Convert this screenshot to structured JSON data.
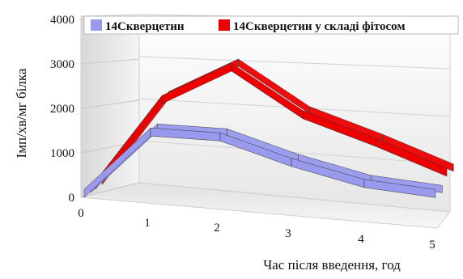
{
  "chart_data": {
    "type": "3d-ribbon-line",
    "title": "",
    "xlabel": "Час після введення, год",
    "ylabel": "Імп/хв/мг білка",
    "x": [
      0,
      1,
      2,
      3,
      4,
      5
    ],
    "ylim": [
      0,
      4000
    ],
    "yticks": [
      0,
      1000,
      2000,
      3000,
      4000
    ],
    "grid": true,
    "legend_position": "top",
    "series": [
      {
        "name": "14Скверцетин",
        "color": "#9999ee",
        "values": [
          0,
          1500,
          1500,
          1050,
          700,
          600
        ]
      },
      {
        "name": "14Скверцетин у складі фітосом",
        "color": "#ee0000",
        "values": [
          0,
          2050,
          2900,
          1950,
          1450,
          900
        ]
      }
    ]
  }
}
